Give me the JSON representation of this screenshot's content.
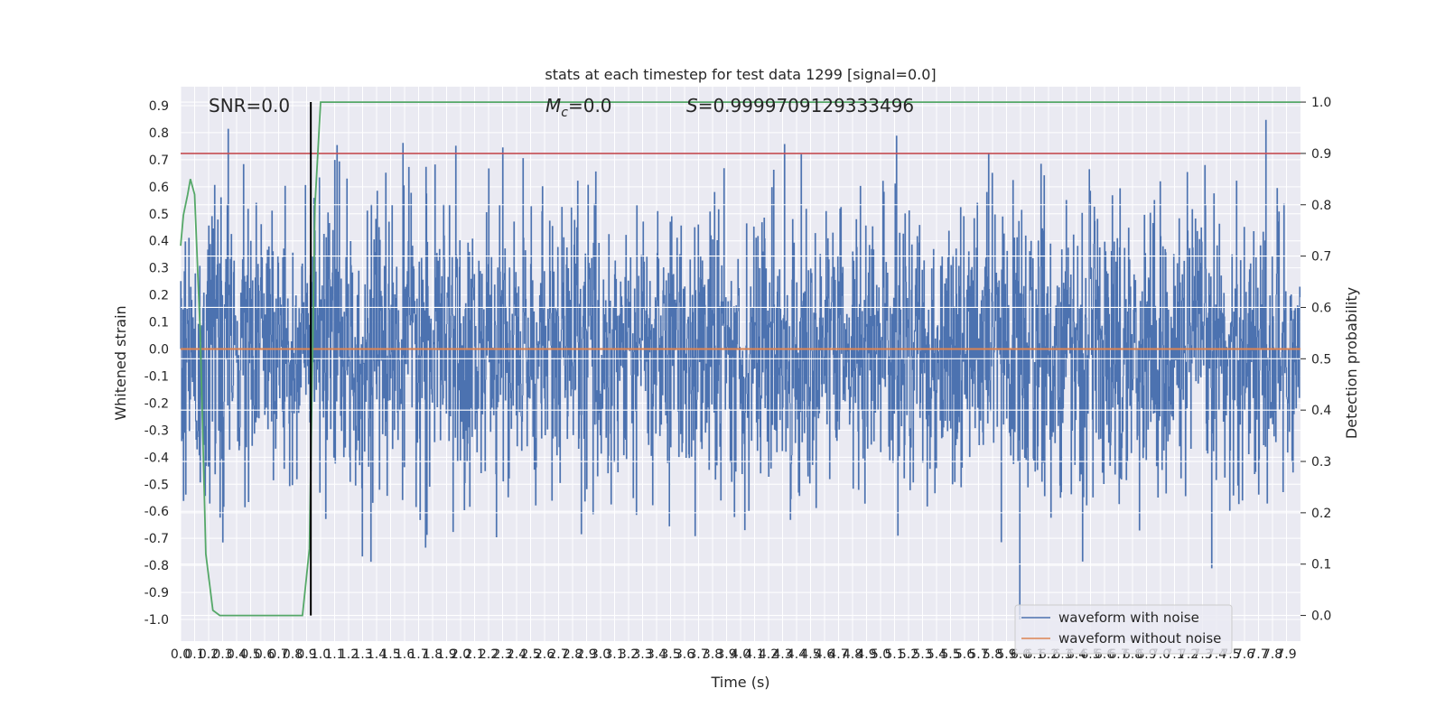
{
  "chart_data": {
    "type": "line",
    "title": "stats at each timestep for test data 1299 [signal=0.0]",
    "xlabel": "Time (s)",
    "ylabel": "Whitened strain",
    "y2label": "Detection probability",
    "xlim": [
      0.0,
      8.0
    ],
    "ylim": [
      -1.08,
      0.97
    ],
    "y2lim": [
      -0.05,
      1.03
    ],
    "x_tick_step": 0.1,
    "y_ticks": [
      -1.0,
      -0.9,
      -0.8,
      -0.7,
      -0.6,
      -0.5,
      -0.4,
      -0.3,
      -0.2,
      -0.1,
      0.0,
      0.1,
      0.2,
      0.3,
      0.4,
      0.5,
      0.6,
      0.7,
      0.8,
      0.9
    ],
    "y2_ticks": [
      0.0,
      0.1,
      0.2,
      0.3,
      0.4,
      0.5,
      0.6,
      0.7,
      0.8,
      0.9,
      1.0
    ],
    "grid": true,
    "legend_position": "lower right",
    "annotations": {
      "snr": "SNR=0.0",
      "mc_symbol": "M",
      "mc_subscript": "c",
      "mc_value": "=0.0",
      "s_symbol": "S",
      "s_value": "=0.9999709129333496"
    },
    "series": [
      {
        "name": "waveform with noise",
        "color": "#4c72b0",
        "kind": "noise",
        "amplitude": "≈ -1.0 to 0.88"
      },
      {
        "name": "waveform without noise",
        "color": "#dd8452",
        "kind": "constant",
        "value": 0.0
      }
    ],
    "threshold": {
      "axis": "right",
      "value": 0.9,
      "color": "#c44e52"
    },
    "event_marker": {
      "x": 0.93,
      "color": "#000000"
    },
    "probability": {
      "axis": "right",
      "color": "#55a868",
      "x": [
        0.0,
        0.02,
        0.05,
        0.07,
        0.1,
        0.14,
        0.18,
        0.23,
        0.28,
        0.5,
        0.7,
        0.87,
        0.92,
        0.96,
        1.0,
        1.05,
        2.0,
        4.0,
        6.0,
        8.0
      ],
      "y": [
        0.72,
        0.78,
        0.82,
        0.85,
        0.82,
        0.55,
        0.12,
        0.01,
        0.0,
        0.0,
        0.0,
        0.0,
        0.13,
        0.8,
        1.0,
        1.0,
        1.0,
        1.0,
        1.0,
        1.0
      ]
    }
  }
}
